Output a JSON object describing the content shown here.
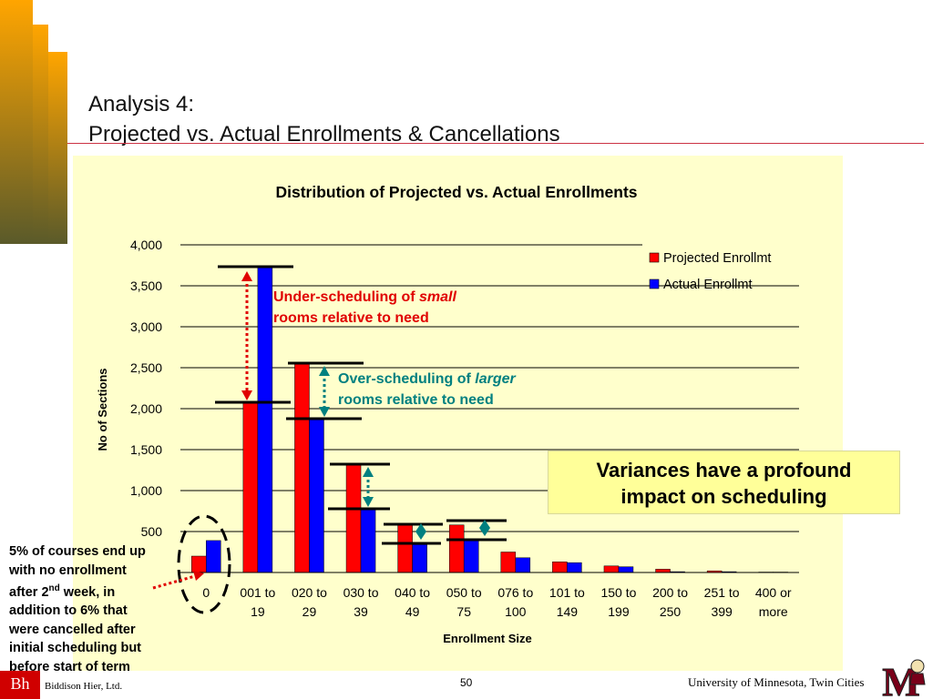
{
  "slide": {
    "title_line1": "Analysis 4:",
    "title_line2": "Projected vs. Actual Enrollments & Cancellations"
  },
  "chart_data": {
    "type": "bar",
    "title": "Distribution of Projected vs. Actual Enrollments",
    "xlabel": "Enrollment Size",
    "ylabel": "No of Sections",
    "ylim": [
      0,
      4000
    ],
    "yticks": [
      "500",
      "1,000",
      "1,500",
      "2,000",
      "2,500",
      "3,000",
      "3,500",
      "4,000"
    ],
    "categories": [
      [
        "0",
        ""
      ],
      [
        "001 to",
        "19"
      ],
      [
        "020 to",
        "29"
      ],
      [
        "030 to",
        "39"
      ],
      [
        "040 to",
        "49"
      ],
      [
        "050 to",
        "75"
      ],
      [
        "076 to",
        "100"
      ],
      [
        "101 to",
        "149"
      ],
      [
        "150 to",
        "199"
      ],
      [
        "200 to",
        "250"
      ],
      [
        "251 to",
        "399"
      ],
      [
        "400 or",
        "more"
      ]
    ],
    "series": [
      {
        "name": "Projected Enrollmt",
        "color": "#ff0000",
        "values": [
          200,
          2070,
          2560,
          1320,
          590,
          580,
          250,
          130,
          80,
          40,
          20,
          5
        ]
      },
      {
        "name": "Actual Enrollmt",
        "color": "#0000ff",
        "values": [
          390,
          3730,
          1890,
          790,
          340,
          400,
          180,
          120,
          70,
          10,
          10,
          5
        ]
      }
    ],
    "grid": true,
    "legend": "top-right"
  },
  "annotations": {
    "under_prefix": "Under-scheduling of ",
    "under_em": "small",
    "under_line2": "rooms relative to need",
    "over_prefix": "Over-scheduling of ",
    "over_em": "larger",
    "over_line2": "rooms relative to need",
    "variance_line1": "Variances have a profound",
    "variance_line2": "impact on scheduling",
    "side_note_line1": "5% of courses end up",
    "side_note_line2": "with no enrollment",
    "side_note_pre": "after 2",
    "side_note_sup": "nd",
    "side_note_post": " week, in",
    "side_note_line4": "addition to 6% that",
    "side_note_line5": "were cancelled after",
    "side_note_line6": "initial scheduling but",
    "side_note_line7": "before start of term",
    "colors": {
      "under": "#e00000",
      "over": "#008080"
    }
  },
  "footer": {
    "logo_text": "Bh",
    "company": "Biddison Hier, Ltd.",
    "page_number": "50",
    "university": "University of Minnesota, Twin Cities",
    "logo_mark": "M"
  }
}
